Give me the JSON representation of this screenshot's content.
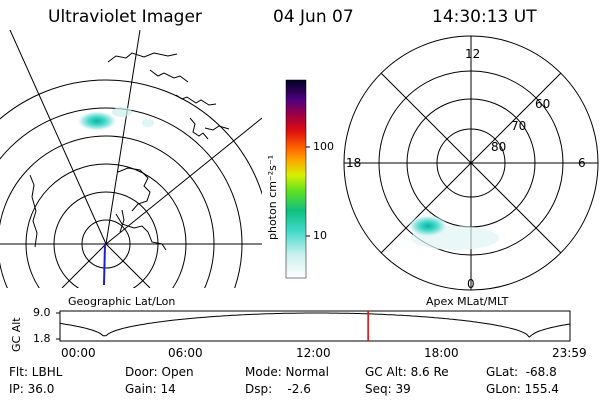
{
  "header": {
    "instrument": "Ultraviolet Imager",
    "date": "04 Jun 07",
    "time": "14:30:13 UT"
  },
  "colorbar": {
    "unit_label": "photon cm⁻²s⁻¹",
    "ticks": [
      "100",
      "10"
    ]
  },
  "polar": {
    "mlt_labels": {
      "top": "12",
      "left": "18",
      "right": "6",
      "bottom": "0"
    },
    "lat_labels": [
      "60",
      "70",
      "80"
    ]
  },
  "panel_labels": {
    "left": "Geographic Lat/Lon",
    "right": "Apex MLat/MLT"
  },
  "gc_alt_plot": {
    "ylabel": "GC Alt",
    "y_ticks": [
      "9.0",
      "1.8"
    ],
    "x_ticks": [
      "00:00",
      "06:00",
      "12:00",
      "18:00",
      "23:59"
    ],
    "current_time_marker_hours": 14.5,
    "alt_min": 1.8,
    "alt_max": 9.0
  },
  "footer": {
    "filter": "Flt: LBHL",
    "ip": "IP: 36.0",
    "door": "Door: Open",
    "gain": "Gain: 14",
    "mode": "Mode: Normal",
    "dsp": "Dsp:    -2.6",
    "gc_alt": "GC Alt: 8.6 Re",
    "seq": "Seq: 39",
    "glat": "GLat:  -68.8",
    "glon": "GLon: 155.4"
  },
  "colors": {
    "marker": "#e00000",
    "pole_line": "#2020c0"
  }
}
